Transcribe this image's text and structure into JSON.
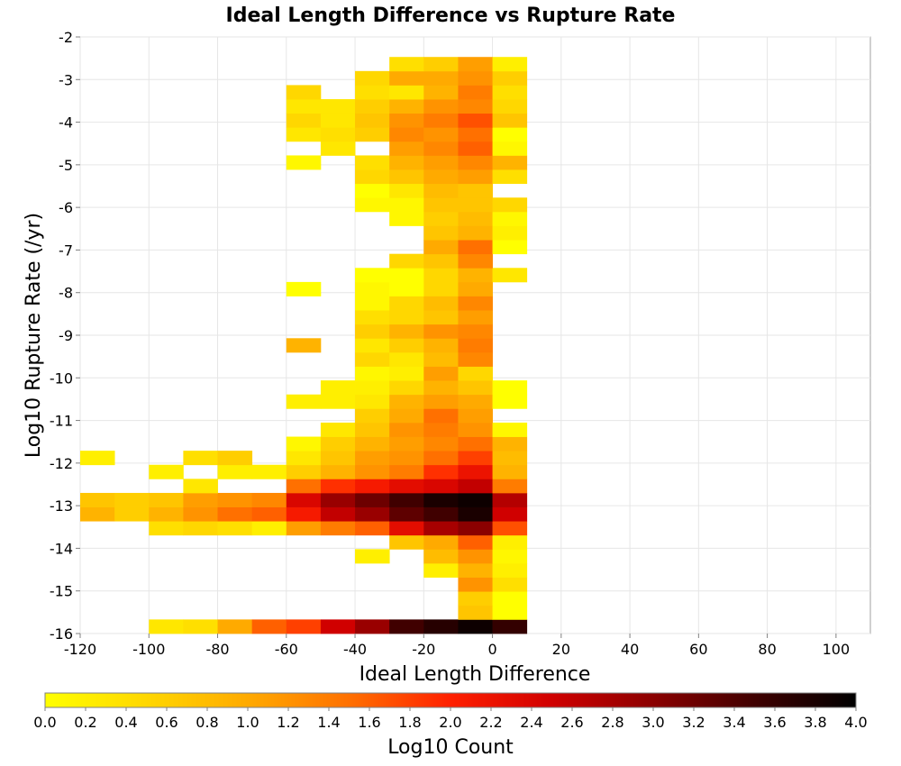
{
  "chart_data": {
    "type": "heatmap",
    "title": "Ideal Length Difference vs Rupture Rate",
    "xlabel": "Ideal Length Difference",
    "ylabel": "Log10 Rupture Rate (/yr)",
    "xlim": [
      -120,
      110
    ],
    "ylim": [
      -16,
      -2
    ],
    "x_ticks": [
      "-120",
      "-100",
      "-80",
      "-60",
      "-40",
      "-20",
      "0",
      "20",
      "40",
      "60",
      "80",
      "100"
    ],
    "y_ticks": [
      "-2",
      "-3",
      "-4",
      "-5",
      "-6",
      "-7",
      "-8",
      "-9",
      "-10",
      "-11",
      "-12",
      "-13",
      "-14",
      "-15",
      "-16"
    ],
    "x_bin_width": 10,
    "y_bin_height": 0.33,
    "grid": true,
    "colorbar": {
      "label": "Log10 Count",
      "min": 0.0,
      "max": 4.0,
      "ticks": [
        "0.0",
        "0.2",
        "0.4",
        "0.6",
        "0.8",
        "1.0",
        "1.2",
        "1.4",
        "1.6",
        "1.8",
        "2.0",
        "2.2",
        "2.4",
        "2.6",
        "2.8",
        "3.0",
        "3.2",
        "3.4",
        "3.6",
        "3.8",
        "4.0"
      ],
      "colors": [
        "#ffff00",
        "#ffd700",
        "#ffaa00",
        "#ff7000",
        "#ff2000",
        "#d00000",
        "#8b0000",
        "#400000",
        "#000000"
      ]
    },
    "columns_x": [
      -120,
      -110,
      -100,
      -90,
      -80,
      -70,
      -60,
      -50,
      -40,
      -30,
      -20,
      -10,
      0
    ],
    "row_y_start": -16.0,
    "rows": [
      [
        null,
        null,
        0.3,
        0.4,
        1.0,
        1.6,
        1.8,
        2.5,
        2.9,
        3.5,
        3.7,
        3.9,
        3.6
      ],
      [
        null,
        null,
        null,
        null,
        null,
        null,
        null,
        null,
        null,
        null,
        null,
        0.7,
        0.0
      ],
      [
        null,
        null,
        null,
        null,
        null,
        null,
        null,
        null,
        null,
        null,
        null,
        0.6,
        0.0
      ],
      [
        null,
        null,
        null,
        null,
        null,
        null,
        null,
        null,
        null,
        null,
        null,
        1.2,
        0.4
      ],
      [
        null,
        null,
        null,
        null,
        null,
        null,
        null,
        null,
        null,
        null,
        0.2,
        0.9,
        0.2
      ],
      [
        null,
        null,
        null,
        null,
        null,
        null,
        null,
        null,
        0.2,
        null,
        0.8,
        1.2,
        0.1
      ],
      [
        null,
        null,
        null,
        null,
        null,
        null,
        null,
        null,
        null,
        0.7,
        1.0,
        1.6,
        0.2
      ],
      [
        null,
        null,
        0.4,
        0.5,
        0.4,
        0.2,
        1.1,
        1.4,
        1.6,
        2.3,
        2.8,
        3.0,
        1.7
      ],
      [
        0.9,
        0.6,
        0.9,
        1.2,
        1.5,
        1.6,
        2.1,
        2.6,
        2.9,
        3.3,
        3.5,
        3.8,
        2.5
      ],
      [
        0.7,
        0.6,
        0.7,
        1.1,
        1.2,
        1.3,
        2.4,
        2.9,
        3.2,
        3.5,
        3.8,
        3.9,
        2.7
      ],
      [
        null,
        null,
        null,
        0.3,
        null,
        null,
        1.5,
        1.9,
        2.1,
        2.3,
        2.4,
        2.6,
        1.4
      ],
      [
        null,
        null,
        0.2,
        null,
        0.2,
        0.2,
        0.6,
        0.9,
        1.2,
        1.4,
        1.9,
        2.2,
        0.9
      ],
      [
        0.2,
        null,
        null,
        0.4,
        0.6,
        null,
        0.3,
        0.7,
        1.1,
        1.2,
        1.5,
        1.8,
        0.8
      ],
      [
        null,
        null,
        null,
        null,
        null,
        null,
        0.1,
        0.6,
        0.9,
        1.1,
        1.3,
        1.5,
        0.9
      ],
      [
        null,
        null,
        null,
        null,
        null,
        null,
        null,
        0.3,
        0.7,
        1.2,
        1.4,
        1.2,
        0.1
      ],
      [
        null,
        null,
        null,
        null,
        null,
        null,
        null,
        null,
        0.6,
        1.0,
        1.5,
        1.1,
        null
      ],
      [
        null,
        null,
        null,
        null,
        null,
        null,
        0.2,
        0.2,
        0.3,
        0.9,
        1.1,
        1.0,
        0.0
      ],
      [
        null,
        null,
        null,
        null,
        null,
        null,
        null,
        0.2,
        0.2,
        0.5,
        0.9,
        0.7,
        0.0
      ],
      [
        null,
        null,
        null,
        null,
        null,
        null,
        null,
        null,
        0.1,
        0.2,
        1.1,
        0.5,
        null
      ],
      [
        null,
        null,
        null,
        null,
        null,
        null,
        null,
        null,
        0.5,
        0.3,
        0.8,
        1.3,
        null
      ],
      [
        null,
        null,
        null,
        null,
        null,
        null,
        0.9,
        null,
        0.3,
        0.6,
        0.9,
        1.4,
        null
      ],
      [
        null,
        null,
        null,
        null,
        null,
        null,
        null,
        null,
        0.6,
        0.9,
        1.2,
        1.3,
        null
      ],
      [
        null,
        null,
        null,
        null,
        null,
        null,
        null,
        null,
        0.4,
        0.5,
        0.7,
        1.1,
        null
      ],
      [
        null,
        null,
        null,
        null,
        null,
        null,
        null,
        null,
        0.1,
        0.5,
        0.8,
        1.3,
        null
      ],
      [
        null,
        null,
        null,
        null,
        null,
        null,
        0.0,
        null,
        0.1,
        0.0,
        0.5,
        1.0,
        null
      ],
      [
        null,
        null,
        null,
        null,
        null,
        null,
        null,
        null,
        0.0,
        0.0,
        0.5,
        0.9,
        0.3
      ],
      [
        null,
        null,
        null,
        null,
        null,
        null,
        null,
        null,
        null,
        0.5,
        0.7,
        1.3,
        null
      ],
      [
        null,
        null,
        null,
        null,
        null,
        null,
        null,
        null,
        null,
        null,
        1.0,
        1.5,
        0.0
      ],
      [
        null,
        null,
        null,
        null,
        null,
        null,
        null,
        null,
        null,
        null,
        0.7,
        0.9,
        0.2
      ],
      [
        null,
        null,
        null,
        null,
        null,
        null,
        null,
        null,
        null,
        0.1,
        0.6,
        0.8,
        0.1
      ],
      [
        null,
        null,
        null,
        null,
        null,
        null,
        null,
        null,
        0.1,
        0.1,
        0.7,
        0.7,
        0.5
      ],
      [
        null,
        null,
        null,
        null,
        null,
        null,
        null,
        null,
        0.0,
        0.3,
        0.8,
        0.7,
        null
      ],
      [
        null,
        null,
        null,
        null,
        null,
        null,
        null,
        null,
        0.5,
        0.7,
        1.0,
        1.1,
        0.4
      ],
      [
        null,
        null,
        null,
        null,
        null,
        null,
        0.1,
        null,
        0.4,
        0.9,
        1.1,
        1.3,
        0.9
      ],
      [
        null,
        null,
        null,
        null,
        null,
        null,
        null,
        0.3,
        null,
        1.1,
        1.3,
        1.6,
        0.1
      ],
      [
        null,
        null,
        null,
        null,
        null,
        null,
        0.3,
        0.4,
        0.6,
        1.3,
        1.2,
        1.5,
        0.0
      ],
      [
        null,
        null,
        null,
        null,
        null,
        null,
        0.5,
        0.3,
        0.7,
        1.2,
        1.4,
        1.7,
        0.7
      ],
      [
        null,
        null,
        null,
        null,
        null,
        null,
        0.3,
        0.3,
        0.6,
        0.9,
        1.2,
        1.3,
        0.5
      ],
      [
        null,
        null,
        null,
        null,
        null,
        null,
        0.5,
        null,
        0.4,
        0.3,
        0.9,
        1.4,
        0.4
      ],
      [
        null,
        null,
        null,
        null,
        null,
        null,
        null,
        null,
        0.5,
        1.0,
        1.0,
        1.2,
        0.6
      ],
      [
        null,
        null,
        null,
        null,
        null,
        null,
        null,
        null,
        null,
        0.4,
        0.6,
        1.1,
        0.2
      ]
    ]
  }
}
